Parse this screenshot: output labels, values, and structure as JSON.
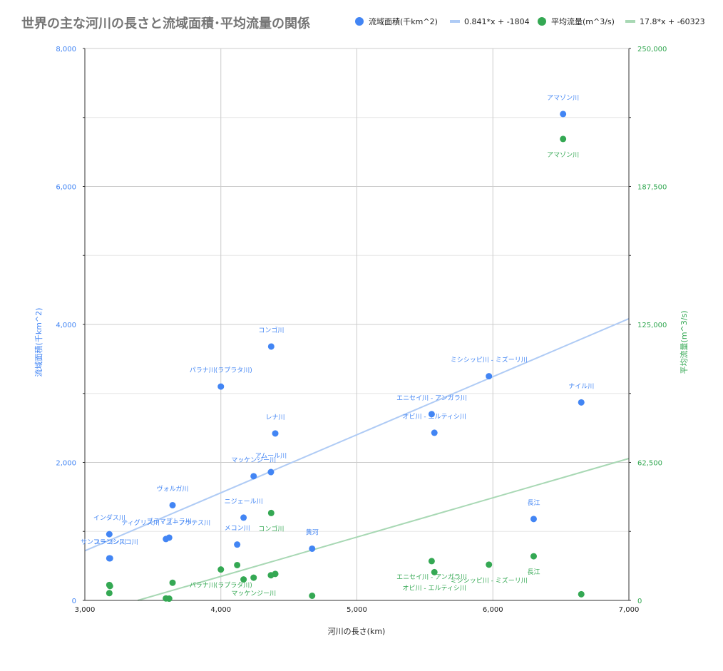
{
  "chart_data": {
    "type": "scatter",
    "title": "世界の主な河川の長さと流域面積･平均流量の関係",
    "xlabel": "河川の長さ(km)",
    "ylabel_left": "流域面積(千km^2)",
    "ylabel_right": "平均流量(m^3/s)",
    "xlim": [
      3000,
      7000
    ],
    "ylim_left": [
      0,
      8000
    ],
    "ylim_right": [
      0,
      250000
    ],
    "x_ticks": [
      "3,000",
      "4,000",
      "5,000",
      "6,000",
      "7,000"
    ],
    "y_left_ticks": [
      "0",
      "2,000",
      "4,000",
      "6,000",
      "8,000"
    ],
    "y_right_ticks": [
      "0",
      "62,500",
      "125,000",
      "187,500",
      "250,000"
    ],
    "grid": true,
    "legend_position": "top-right",
    "colors": {
      "area": "#4285F4",
      "flow": "#34A853",
      "trend_area": "#AFCBF5",
      "trend_flow": "#A8D8B4",
      "title": "#757575",
      "grid": "#CCCCCC"
    },
    "legend": [
      {
        "label": "流域面積(千km^2)",
        "kind": "dot",
        "color": "#4285F4"
      },
      {
        "label": "0.841*x + -1804",
        "kind": "line",
        "color": "#AFCBF5"
      },
      {
        "label": "平均流量(m^3/s)",
        "kind": "dot",
        "color": "#34A853"
      },
      {
        "label": "17.8*x + -60323",
        "kind": "line",
        "color": "#A8D8B4"
      }
    ],
    "series": [
      {
        "name": "流域面積(千km^2)",
        "axis": "left",
        "points": [
          {
            "x": 6516,
            "y": 7050,
            "label": "アマゾン川"
          },
          {
            "x": 4370,
            "y": 3680,
            "label": "コンゴ川"
          },
          {
            "x": 4000,
            "y": 3100,
            "label": "パラナ川(ラプラタ川)"
          },
          {
            "x": 5971,
            "y": 3250,
            "label": "ミシシッピ川 - ミズーリ川"
          },
          {
            "x": 6650,
            "y": 2870,
            "label": "ナイル川"
          },
          {
            "x": 5550,
            "y": 2700,
            "label": "エニセイ川 - アンガラ川"
          },
          {
            "x": 5570,
            "y": 2430,
            "label": "オビ川 - エルティシ川"
          },
          {
            "x": 4400,
            "y": 2420,
            "label": "レナ川"
          },
          {
            "x": 4368,
            "y": 1860,
            "label": "アムール川"
          },
          {
            "x": 4241,
            "y": 1800,
            "label": "マッケンジー川"
          },
          {
            "x": 3645,
            "y": 1380,
            "label": "ヴォルガ川"
          },
          {
            "x": 4167,
            "y": 1200,
            "label": "ニジェール川"
          },
          {
            "x": 6300,
            "y": 1180,
            "label": "長江"
          },
          {
            "x": 3180,
            "y": 960,
            "label": "インダス川"
          },
          {
            "x": 3185,
            "y": 610,
            "label": "ユーコン川"
          },
          {
            "x": 3180,
            "y": 610,
            "label": "サンフランシスコ川"
          },
          {
            "x": 3596,
            "y": 890,
            "label": "ティグリス川 - ユーフラテス川"
          },
          {
            "x": 3620,
            "y": 910,
            "label": "ブラマプトラ川"
          },
          {
            "x": 4120,
            "y": 810,
            "label": "メコン川"
          },
          {
            "x": 4671,
            "y": 750,
            "label": "黄河"
          }
        ]
      },
      {
        "name": "平均流量(m^3/s)",
        "axis": "right",
        "points": [
          {
            "x": 6516,
            "y": 209000,
            "label": "アマゾン川"
          },
          {
            "x": 4370,
            "y": 39600,
            "label": "コンゴ川"
          },
          {
            "x": 6300,
            "y": 20000,
            "label": "長江"
          },
          {
            "x": 5550,
            "y": 17800,
            "label": "エニセイ川 - アンガラ川"
          },
          {
            "x": 5971,
            "y": 16200,
            "label": "ミシシッピ川 - ミズーリ川"
          },
          {
            "x": 4120,
            "y": 16000,
            "label": ""
          },
          {
            "x": 4000,
            "y": 14000,
            "label": "パラナ川(ラプラタ川)"
          },
          {
            "x": 5570,
            "y": 12800,
            "label": "オビ川 - エルティシ川"
          },
          {
            "x": 4400,
            "y": 12000,
            "label": ""
          },
          {
            "x": 4368,
            "y": 11400,
            "label": ""
          },
          {
            "x": 4241,
            "y": 10300,
            "label": "マッケンジー川"
          },
          {
            "x": 4167,
            "y": 9500,
            "label": ""
          },
          {
            "x": 3645,
            "y": 8000,
            "label": ""
          },
          {
            "x": 3180,
            "y": 7000,
            "label": ""
          },
          {
            "x": 3185,
            "y": 6500,
            "label": ""
          },
          {
            "x": 3180,
            "y": 3300,
            "label": ""
          },
          {
            "x": 6650,
            "y": 2800,
            "label": ""
          },
          {
            "x": 4671,
            "y": 2100,
            "label": ""
          },
          {
            "x": 3596,
            "y": 900,
            "label": ""
          },
          {
            "x": 3620,
            "y": 800,
            "label": ""
          }
        ]
      }
    ],
    "trendlines": [
      {
        "axis": "left",
        "slope": 0.841,
        "intercept": -1804
      },
      {
        "axis": "right",
        "slope": 17.8,
        "intercept": -60323
      }
    ]
  }
}
